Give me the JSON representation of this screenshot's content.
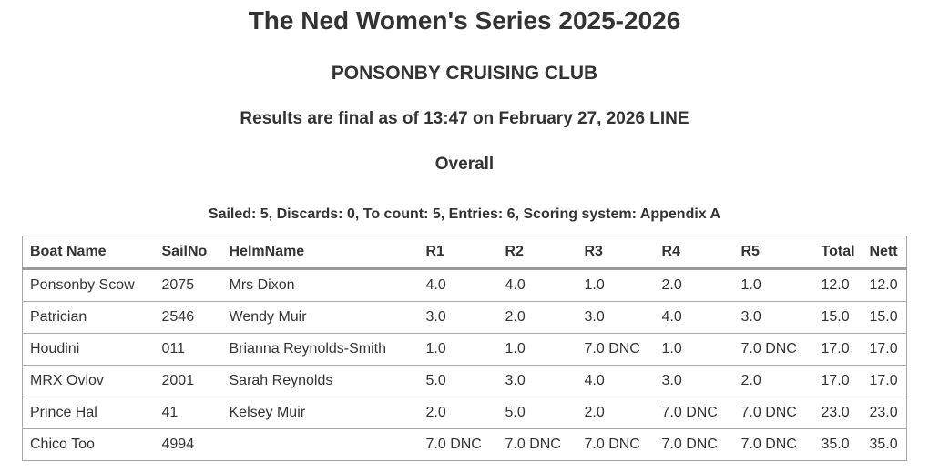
{
  "header": {
    "series_title": "The Ned Women's Series 2025-2026",
    "club_name": "PONSONBY CRUISING CLUB",
    "status_line": "Results are final as of 13:47 on February 27, 2026 LINE",
    "section_title": "Overall",
    "summary_line": "Sailed: 5, Discards: 0, To count: 5, Entries: 6, Scoring system: Appendix A"
  },
  "results_table": {
    "columns": [
      "Boat Name",
      "SailNo",
      "HelmName",
      "R1",
      "R2",
      "R3",
      "R4",
      "R5",
      "Total",
      "Nett"
    ],
    "rows": [
      [
        "Ponsonby Scow",
        "2075",
        "Mrs Dixon",
        "4.0",
        "4.0",
        "1.0",
        "2.0",
        "1.0",
        "12.0",
        "12.0"
      ],
      [
        "Patrician",
        "2546",
        "Wendy Muir",
        "3.0",
        "2.0",
        "3.0",
        "4.0",
        "3.0",
        "15.0",
        "15.0"
      ],
      [
        "Houdini",
        "011",
        "Brianna Reynolds-Smith",
        "1.0",
        "1.0",
        "7.0 DNC",
        "1.0",
        "7.0 DNC",
        "17.0",
        "17.0"
      ],
      [
        "MRX Ovlov",
        "2001",
        "Sarah Reynolds",
        "5.0",
        "3.0",
        "4.0",
        "3.0",
        "2.0",
        "17.0",
        "17.0"
      ],
      [
        "Prince Hal",
        "41",
        "Kelsey Muir",
        "2.0",
        "5.0",
        "2.0",
        "7.0 DNC",
        "7.0 DNC",
        "23.0",
        "23.0"
      ],
      [
        "Chico Too",
        "4994",
        "",
        "7.0 DNC",
        "7.0 DNC",
        "7.0 DNC",
        "7.0 DNC",
        "7.0 DNC",
        "35.0",
        "35.0"
      ]
    ]
  },
  "colors": {
    "text": "#333333",
    "table_border": "#a6a6a6",
    "row_divider": "#ababab",
    "header_divider": "#999999",
    "background": "#ffffff"
  }
}
